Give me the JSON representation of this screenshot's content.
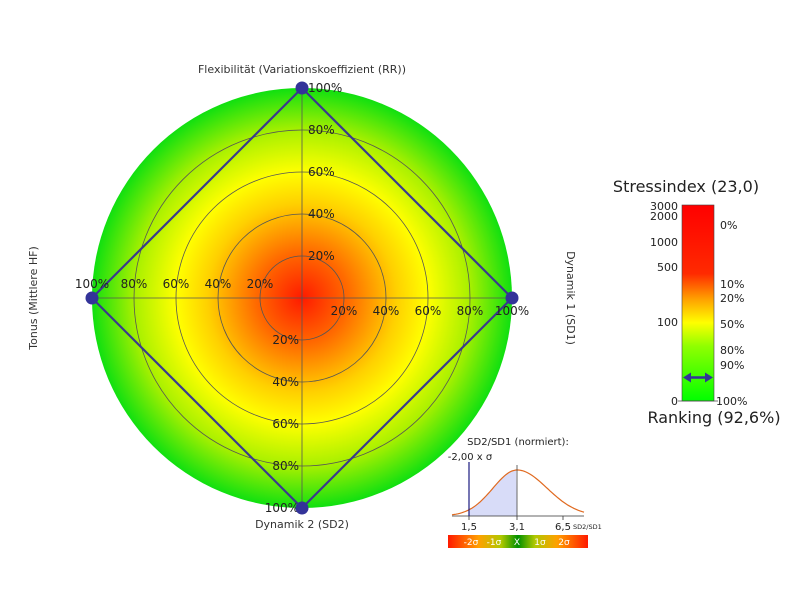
{
  "radar": {
    "axes": [
      {
        "id": "top",
        "label": "Flexibilität (Variationskoeffizient (RR))",
        "value": 100
      },
      {
        "id": "right",
        "label": "Dynamik 1 (SD1)",
        "value": 100
      },
      {
        "id": "bottom",
        "label": "Dynamik 2 (SD2)",
        "value": 100
      },
      {
        "id": "left",
        "label": "Tonus (Mittlere HF)",
        "value": 100
      }
    ],
    "ring_labels": [
      "20%",
      "40%",
      "60%",
      "80%",
      "100%"
    ],
    "ring_values": [
      20,
      40,
      60,
      80,
      100
    ],
    "colors": {
      "center": "#ff1a00",
      "mid": "#ffff00",
      "outer": "#00ff00",
      "polygon": "#3a3a8c",
      "marker": "#333399"
    }
  },
  "stress": {
    "title": "Stressindex (23,0)",
    "ranking": "Ranking (92,6%)",
    "left_labels": [
      "3000",
      "2000",
      "1000",
      "500",
      "100",
      "0"
    ],
    "right_labels": [
      "0%",
      "10%",
      "20%",
      "50%",
      "80%",
      "90%",
      "100%"
    ],
    "marker_fraction": 0.88
  },
  "sd_ratio": {
    "title": "SD2/SD1 (normiert):",
    "marker_label": "-2,00 x σ",
    "ticks": [
      "1,5",
      "3,1",
      "6,5"
    ],
    "unit": "SD2/SD1",
    "sigma_labels": [
      "-2σ",
      "-1σ",
      "X",
      "1σ",
      "2σ"
    ]
  },
  "chart_data": [
    {
      "type": "radar",
      "axes": [
        "Flexibilität (Variationskoeffizient (RR))",
        "Dynamik 1 (SD1)",
        "Dynamik 2 (SD2)",
        "Tonus (Mittlere HF)"
      ],
      "values": [
        100,
        100,
        100,
        100
      ],
      "range": [
        0,
        100
      ]
    },
    {
      "type": "bar",
      "title": "Stressindex (23,0)",
      "value": 23.0,
      "ranking_percent": 92.6
    },
    {
      "type": "line",
      "title": "SD2/SD1 (normiert):",
      "x_ticks": [
        1.5,
        3.1,
        6.5
      ],
      "marker_sigma": -2.0
    }
  ]
}
